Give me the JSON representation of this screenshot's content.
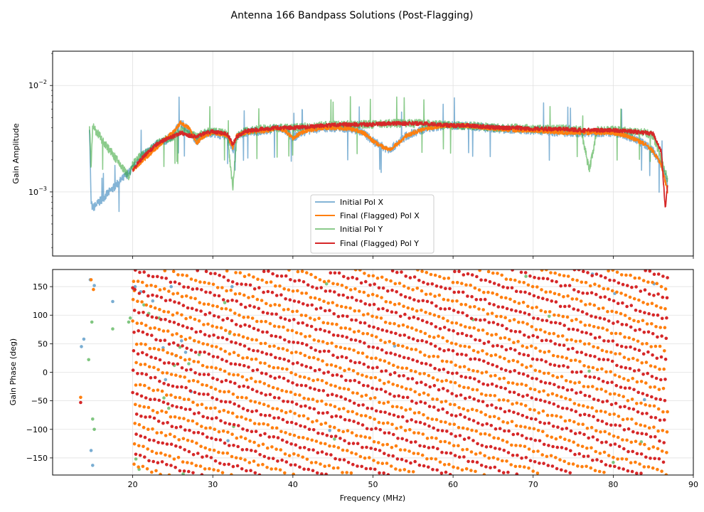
{
  "figure": {
    "title": "Antenna 166 Bandpass Solutions (Post-Flagging)"
  },
  "chart_data": [
    {
      "type": "line",
      "ylabel": "Gain Amplitude",
      "xlabel": "",
      "yscale": "log",
      "xlim": [
        10,
        90
      ],
      "ylim": [
        0.00025,
        0.021
      ],
      "xticks": [
        20,
        30,
        40,
        50,
        60,
        70,
        80,
        90
      ],
      "yticks": [
        {
          "value": 0.001,
          "label": "10",
          "exp": "−3"
        },
        {
          "value": 0.01,
          "label": "10",
          "exp": "−2"
        }
      ],
      "grid": true,
      "legend": "lower-center",
      "legend_entries": [
        {
          "label": "Initial Pol X",
          "color": "#1f77b4"
        },
        {
          "label": "Final (Flagged) Pol X",
          "color": "#ff7f0e"
        },
        {
          "label": "Initial Pol Y",
          "color": "#2ca02c"
        },
        {
          "label": "Final (Flagged) Pol Y",
          "color": "#d62728"
        }
      ],
      "series": [
        {
          "name": "Initial Pol X",
          "color": "#1f77b4",
          "alpha": 0.55,
          "x": [
            14.6,
            14.8,
            15,
            20,
            21,
            22,
            23,
            24,
            25,
            26,
            27,
            28,
            29,
            30,
            31,
            31.8,
            32.5,
            33,
            34,
            35,
            36,
            37,
            38,
            39,
            40,
            41,
            42,
            43,
            44,
            45,
            46,
            47,
            48,
            49,
            50,
            51,
            52,
            53,
            54,
            55,
            56,
            57,
            58,
            59,
            60,
            62,
            64,
            66,
            68,
            70,
            72,
            74,
            76,
            78,
            80,
            82,
            84,
            85,
            86,
            86.8
          ],
          "y": [
            0.0042,
            0.0008,
            0.0007,
            0.00165,
            0.0021,
            0.0025,
            0.0028,
            0.003,
            0.0034,
            0.0045,
            0.0038,
            0.003,
            0.0035,
            0.0036,
            0.0034,
            0.0034,
            0.0024,
            0.0033,
            0.0036,
            0.0037,
            0.0037,
            0.0038,
            0.004,
            0.0038,
            0.0032,
            0.0036,
            0.0038,
            0.0039,
            0.004,
            0.004,
            0.004,
            0.0039,
            0.0038,
            0.0035,
            0.003,
            0.0027,
            0.0025,
            0.0028,
            0.0033,
            0.0036,
            0.0038,
            0.004,
            0.0041,
            0.0042,
            0.0042,
            0.0042,
            0.004,
            0.0039,
            0.0038,
            0.0038,
            0.0037,
            0.0036,
            0.0036,
            0.0036,
            0.0036,
            0.0033,
            0.0028,
            0.0024,
            0.0018,
            0.0012
          ]
        },
        {
          "name": "Final (Flagged) Pol X",
          "color": "#ff7f0e",
          "alpha": 1,
          "x": [
            20,
            21,
            22,
            23,
            24,
            25,
            26,
            27,
            28,
            29,
            30,
            31,
            31.8,
            32.5,
            33,
            34,
            35,
            36,
            37,
            38,
            39,
            40,
            41,
            42,
            43,
            44,
            45,
            46,
            47,
            48,
            49,
            50,
            51,
            52,
            53,
            54,
            55,
            56,
            57,
            58,
            59,
            60,
            62,
            64,
            66,
            68,
            70,
            72,
            74,
            76,
            78,
            80,
            82,
            84,
            85,
            86,
            86.8
          ],
          "y": [
            0.0016,
            0.0019,
            0.0022,
            0.0026,
            0.0031,
            0.0036,
            0.0045,
            0.004,
            0.0029,
            0.0034,
            0.0036,
            0.0035,
            0.0034,
            0.0026,
            0.0034,
            0.0036,
            0.0037,
            0.0037,
            0.0038,
            0.004,
            0.0038,
            0.0032,
            0.0036,
            0.0038,
            0.0039,
            0.004,
            0.004,
            0.004,
            0.0039,
            0.0038,
            0.0035,
            0.003,
            0.0027,
            0.0025,
            0.0028,
            0.0033,
            0.0036,
            0.0038,
            0.004,
            0.0041,
            0.0042,
            0.0042,
            0.0042,
            0.004,
            0.0039,
            0.0038,
            0.0038,
            0.0037,
            0.0036,
            0.0036,
            0.0036,
            0.0036,
            0.0033,
            0.0028,
            0.0024,
            0.0018,
            0.001
          ]
        },
        {
          "name": "Initial Pol Y",
          "color": "#2ca02c",
          "alpha": 0.55,
          "x": [
            14.6,
            14.8,
            15,
            19.5,
            20,
            21,
            22,
            23,
            24,
            25,
            26,
            27,
            28,
            29,
            30,
            31,
            31.8,
            32.5,
            33,
            34,
            35,
            36,
            38,
            40,
            42,
            44,
            46,
            48,
            50,
            52,
            54,
            56,
            58,
            60,
            62,
            64,
            66,
            68,
            70,
            72,
            74,
            76,
            77,
            78,
            80,
            82,
            84,
            85,
            86,
            86.8
          ],
          "y": [
            0.0043,
            0.0017,
            0.0041,
            0.0014,
            0.0018,
            0.0022,
            0.0024,
            0.0028,
            0.0031,
            0.0033,
            0.0038,
            0.0036,
            0.0033,
            0.0036,
            0.0037,
            0.0036,
            0.0035,
            0.0011,
            0.0033,
            0.0037,
            0.0038,
            0.0039,
            0.004,
            0.004,
            0.0041,
            0.0042,
            0.0043,
            0.0043,
            0.0043,
            0.0044,
            0.0044,
            0.0044,
            0.0043,
            0.0042,
            0.0042,
            0.0041,
            0.004,
            0.004,
            0.0039,
            0.0039,
            0.0039,
            0.0038,
            0.0016,
            0.0038,
            0.0038,
            0.0037,
            0.0036,
            0.0034,
            0.002,
            0.0013
          ]
        },
        {
          "name": "Final (Flagged) Pol Y",
          "color": "#d62728",
          "alpha": 1,
          "x": [
            20,
            21,
            22,
            23,
            24,
            25,
            26,
            27,
            28,
            29,
            30,
            31,
            31.8,
            32.5,
            33,
            34,
            35,
            36,
            38,
            40,
            42,
            44,
            46,
            48,
            50,
            52,
            54,
            56,
            58,
            60,
            62,
            64,
            66,
            68,
            70,
            72,
            74,
            76,
            78,
            80,
            82,
            84,
            85,
            86,
            86.5,
            86.8
          ],
          "y": [
            0.0016,
            0.002,
            0.0024,
            0.0028,
            0.0031,
            0.0033,
            0.0036,
            0.0034,
            0.0033,
            0.0036,
            0.0037,
            0.0036,
            0.0035,
            0.0028,
            0.0033,
            0.0037,
            0.0038,
            0.0039,
            0.004,
            0.004,
            0.0041,
            0.0042,
            0.0043,
            0.0043,
            0.0043,
            0.0044,
            0.0044,
            0.0044,
            0.0043,
            0.0042,
            0.0042,
            0.0041,
            0.004,
            0.004,
            0.0039,
            0.0039,
            0.0039,
            0.0038,
            0.0038,
            0.0038,
            0.0037,
            0.0036,
            0.0035,
            0.0024,
            0.0007,
            0.0012
          ]
        }
      ]
    },
    {
      "type": "scatter",
      "xlabel": "Frequency (MHz)",
      "ylabel": "Gain Phase (deg)",
      "xlim": [
        10,
        90
      ],
      "ylim": [
        -180,
        180
      ],
      "xticks": [
        20,
        30,
        40,
        50,
        60,
        70,
        80,
        90
      ],
      "yticks": [
        -150,
        -100,
        -50,
        0,
        50,
        100,
        150
      ],
      "grid": true,
      "phase_wrap": {
        "min": -180,
        "max": 180,
        "slope_deg_per_mhz": 650,
        "x_start": 20,
        "x_end": 86.8
      },
      "series": [
        {
          "name": "Initial Pol X",
          "color": "#1f77b4",
          "alpha": 0.6,
          "x": [
            13.6,
            13.9,
            14.7,
            14.8,
            15.0,
            15.2,
            17.5,
            20.1,
            20.3,
            21.0,
            22.5,
            23.8,
            24.1,
            24.8,
            25.4,
            26.1,
            26.6,
            27.3,
            31.9,
            32.4,
            44.6,
            52.7,
            77.4,
            80.2,
            83.9,
            85.1
          ],
          "y": [
            45,
            58,
            162,
            -137,
            -163,
            152,
            124,
            146,
            150,
            141,
            125,
            43,
            -13,
            150,
            29,
            55,
            35,
            -34,
            -120,
            150,
            -102,
            46,
            172,
            138,
            -48,
            155
          ]
        },
        {
          "name": "Final (Flagged) Pol X",
          "color": "#ff7f0e",
          "alpha": 1,
          "x": [
            13.5,
            14.8,
            15.1,
            20.2
          ],
          "y": [
            -44,
            162,
            145,
            143
          ],
          "continuous": true,
          "phase_offset": 90
        },
        {
          "name": "Initial Pol Y",
          "color": "#2ca02c",
          "alpha": 0.6,
          "x": [
            14.5,
            14.9,
            15.0,
            15.2,
            17.5,
            19.5,
            19.7,
            20.4,
            20.8,
            21.4,
            22.0,
            23.3,
            23.9,
            24.5,
            25.2,
            25.9,
            26.3,
            27.0,
            27.7,
            28.3,
            31.5,
            32.1,
            32.6,
            44.2,
            45.2,
            62.5,
            69.1,
            72.0,
            77.0,
            80.0,
            83.5
          ],
          "y": [
            22,
            88,
            -82,
            -100,
            76,
            88,
            95,
            -152,
            -170,
            118,
            103,
            95,
            -45,
            -63,
            12,
            44,
            -178,
            15,
            55,
            31,
            122,
            68,
            -95,
            155,
            -117,
            92,
            168,
            98,
            2,
            -158,
            -122
          ]
        },
        {
          "name": "Final (Flagged) Pol Y",
          "color": "#d62728",
          "alpha": 1,
          "x": [
            13.5,
            20.0
          ],
          "y": [
            -53,
            148
          ],
          "continuous": true,
          "phase_offset": -35
        }
      ]
    }
  ]
}
